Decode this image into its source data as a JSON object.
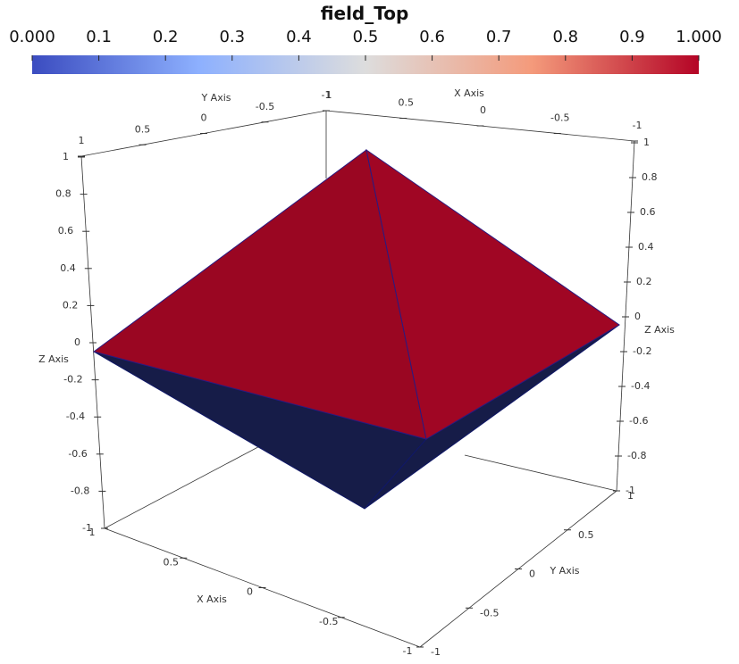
{
  "colorbar": {
    "title": "field_Top",
    "ticks": [
      "0.000",
      "0.1",
      "0.2",
      "0.3",
      "0.4",
      "0.5",
      "0.6",
      "0.7",
      "0.8",
      "0.9",
      "1.000"
    ]
  },
  "axes": {
    "top_y": {
      "title": "Y Axis",
      "ticks": [
        "1",
        "0.5",
        "0",
        "-0.5",
        "-1"
      ]
    },
    "top_x": {
      "title": "X Axis",
      "ticks": [
        "1",
        "0.5",
        "0",
        "-0.5",
        "-1"
      ]
    },
    "left_z": {
      "title": "Z Axis",
      "ticks": [
        "1",
        "0.8",
        "0.6",
        "0.4",
        "0.2",
        "0",
        "-0.2",
        "-0.4",
        "-0.6",
        "-0.8",
        "-1"
      ]
    },
    "right_z": {
      "title": "Z Axis",
      "ticks": [
        "1",
        "0.8",
        "0.6",
        "0.4",
        "0.2",
        "0",
        "-0.2",
        "-0.4",
        "-0.6",
        "-0.8",
        "-1"
      ]
    },
    "bottom_x": {
      "title": "X Axis",
      "ticks": [
        "1",
        "0.5",
        "0",
        "-0.5",
        "-1"
      ]
    },
    "bottom_y": {
      "title": "Y Axis",
      "ticks": [
        "-1",
        "-0.5",
        "0",
        "0.5",
        "1"
      ]
    }
  }
}
